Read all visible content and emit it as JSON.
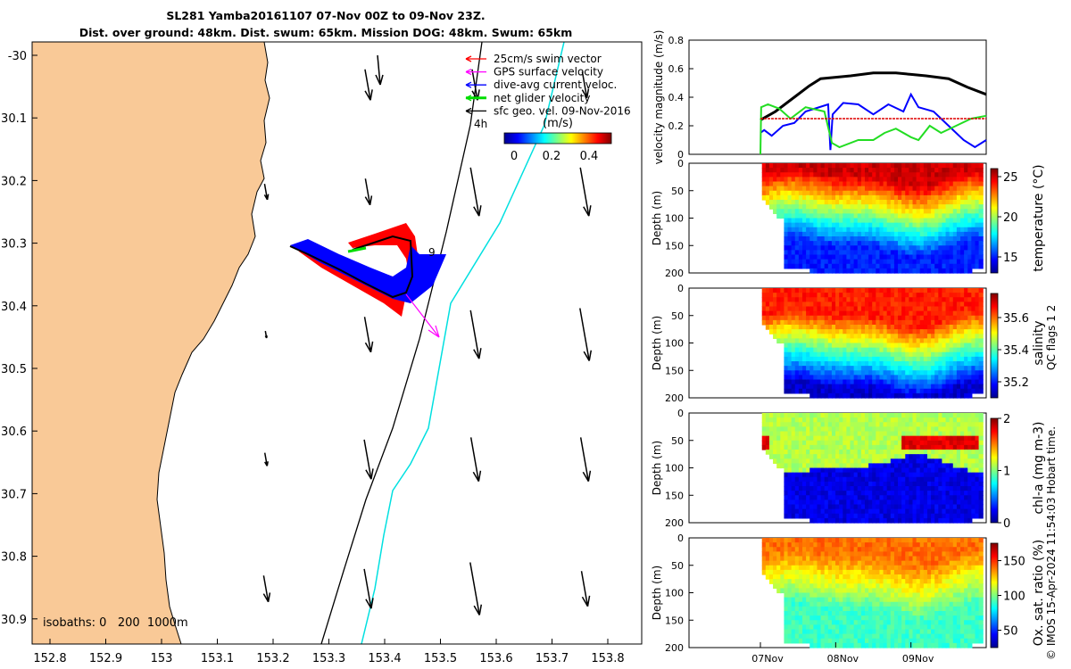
{
  "title": {
    "line1": "SL281 Yamba20161107 07-Nov 00Z to 09-Nov 23Z.",
    "line2": "Dist. over ground: 48km. Dist. swum: 65km. Mission DOG: 48km. Swum: 65km"
  },
  "map": {
    "xticks": [
      "152.8",
      "152.9",
      "153",
      "153.1",
      "153.2",
      "153.3",
      "153.4",
      "153.5",
      "153.6",
      "153.7",
      "153.8"
    ],
    "yticks": [
      "-30",
      "30.1",
      "30.2",
      "30.3",
      "30.4",
      "30.5",
      "30.6",
      "30.7",
      "30.8",
      "30.9"
    ],
    "legend": [
      {
        "label": "25cm/s swim vector",
        "color": "#ff0000"
      },
      {
        "label": "GPS surface velocity",
        "color": "#ff00ff"
      },
      {
        "label": "dive-avg current veloc.",
        "color": "#0000ff"
      },
      {
        "label": "net glider velocity",
        "color": "#00dd00"
      },
      {
        "label": "sfc geo. vel. 09-Nov-2016",
        "color": "#000000"
      }
    ],
    "colorbar_label": "(m/s)",
    "colorbar_ticks": [
      "0",
      "0.2",
      "0.4"
    ],
    "marker_4h": "4h",
    "marker_9": "9",
    "isobaths_label": "isobaths: 0   200  1000m",
    "land_color": "#f9c997"
  },
  "chart_data": [
    {
      "type": "line",
      "ylabel": "velocity magnitude (m/s)",
      "ylim": [
        0,
        0.8
      ],
      "yticks": [
        "0",
        "0.2",
        "0.4",
        "0.6",
        "0.8"
      ],
      "series": [
        {
          "color": "#000000",
          "x": [
            0.0,
            0.2,
            0.45,
            0.65,
            0.8,
            1.0,
            1.2,
            1.5,
            1.8,
            2.0,
            2.2,
            2.5,
            2.75,
            3.0
          ],
          "y": [
            0.24,
            0.3,
            0.4,
            0.48,
            0.53,
            0.54,
            0.55,
            0.57,
            0.57,
            0.56,
            0.55,
            0.53,
            0.47,
            0.42
          ]
        },
        {
          "color": "#0000ff",
          "x": [
            0.0,
            0.05,
            0.15,
            0.3,
            0.45,
            0.6,
            0.9,
            0.93,
            0.96,
            1.1,
            1.3,
            1.5,
            1.7,
            1.9,
            2.0,
            2.1,
            2.3,
            2.5,
            2.7,
            2.85,
            3.0
          ],
          "y": [
            0.15,
            0.17,
            0.13,
            0.2,
            0.22,
            0.3,
            0.35,
            0.03,
            0.28,
            0.36,
            0.35,
            0.28,
            0.35,
            0.3,
            0.42,
            0.33,
            0.3,
            0.2,
            0.1,
            0.05,
            0.1
          ]
        },
        {
          "color": "#22dd22",
          "x": [
            0.0,
            0.01,
            0.1,
            0.25,
            0.4,
            0.6,
            0.85,
            0.95,
            1.05,
            1.3,
            1.5,
            1.65,
            1.8,
            2.0,
            2.1,
            2.25,
            2.4,
            2.6,
            2.8,
            3.0
          ],
          "y": [
            0.0,
            0.33,
            0.35,
            0.32,
            0.25,
            0.33,
            0.3,
            0.08,
            0.05,
            0.1,
            0.1,
            0.15,
            0.18,
            0.12,
            0.1,
            0.2,
            0.15,
            0.2,
            0.25,
            0.27
          ]
        },
        {
          "color": "#dd0000",
          "x": [
            0.0,
            3.0
          ],
          "y": [
            0.25,
            0.25
          ]
        }
      ]
    },
    {
      "type": "heatmap",
      "ylabel": "Depth (m)",
      "colorbar_label": "temperature (°C)",
      "colorbar_ticks": [
        "15",
        "20",
        "25"
      ],
      "cmin": 13,
      "cmax": 26,
      "yticks": [
        "0",
        "50",
        "100",
        "150",
        "200"
      ],
      "ylim": [
        200,
        0
      ]
    },
    {
      "type": "heatmap",
      "ylabel": "Depth (m)",
      "colorbar_label": "salinity",
      "colorbar_ticks": [
        "35.2",
        "35.4",
        "35.6"
      ],
      "cmin": 35.1,
      "cmax": 35.75,
      "yticks": [
        "0",
        "50",
        "100",
        "150",
        "200"
      ],
      "ylim": [
        200,
        0
      ]
    },
    {
      "type": "heatmap",
      "ylabel": "Depth (m)",
      "colorbar_label": "chl-a (mg m-3)",
      "colorbar_ticks": [
        "0",
        "1",
        "2"
      ],
      "cmin": 0,
      "cmax": 2,
      "yticks": [
        "0",
        "50",
        "100",
        "150",
        "200"
      ],
      "ylim": [
        200,
        0
      ]
    },
    {
      "type": "heatmap",
      "ylabel": "Depth (m)",
      "colorbar_label": "Ox. sat. ratio (%)",
      "colorbar_ticks": [
        "50",
        "100",
        "150"
      ],
      "cmin": 25,
      "cmax": 175,
      "yticks": [
        "0",
        "50",
        "100",
        "150",
        "200"
      ],
      "ylim": [
        200,
        0
      ]
    }
  ],
  "time_axis": [
    "07Nov",
    "08Nov",
    "09Nov"
  ],
  "side_note": "QC flags 1  2",
  "footer": "© IMOS 15-Apr-2024 11:54:03 Hobart time."
}
